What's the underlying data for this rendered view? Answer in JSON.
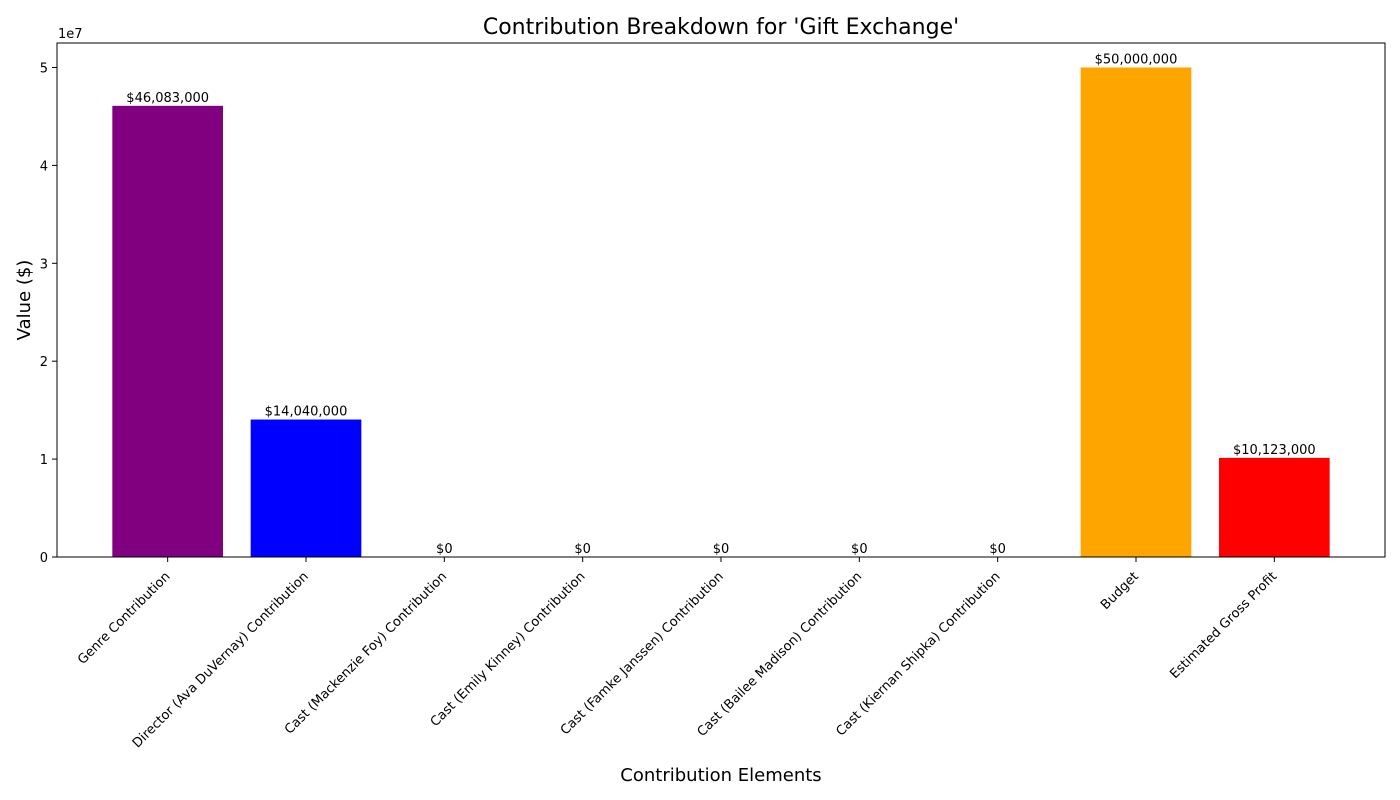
{
  "chart_data": {
    "type": "bar",
    "title": "Contribution Breakdown for 'Gift Exchange'",
    "xlabel": "Contribution Elements",
    "ylabel": "Value ($)",
    "y_scale_label": "1e7",
    "ylim": [
      0,
      52500000
    ],
    "y_ticks": [
      {
        "value": 0,
        "label": "0"
      },
      {
        "value": 10000000,
        "label": "1"
      },
      {
        "value": 20000000,
        "label": "2"
      },
      {
        "value": 30000000,
        "label": "3"
      },
      {
        "value": 40000000,
        "label": "4"
      },
      {
        "value": 50000000,
        "label": "5"
      }
    ],
    "grid": false,
    "categories": [
      "Genre Contribution",
      "Director (Ava DuVernay) Contribution",
      "Cast (Mackenzie Foy) Contribution",
      "Cast (Emily Kinney) Contribution",
      "Cast (Famke Janssen) Contribution",
      "Cast (Bailee Madison) Contribution",
      "Cast (Kiernan Shipka) Contribution",
      "Budget",
      "Estimated Gross Profit"
    ],
    "values": [
      46083000,
      14040000,
      0,
      0,
      0,
      0,
      0,
      50000000,
      10123000
    ],
    "value_labels": [
      "$46,083,000",
      "$14,040,000",
      "$0",
      "$0",
      "$0",
      "$0",
      "$0",
      "$50,000,000",
      "$10,123,000"
    ],
    "colors": [
      "#800080",
      "#0000ff",
      "#008000",
      "#008000",
      "#008000",
      "#008000",
      "#008000",
      "#ffa500",
      "#ff0000"
    ]
  }
}
